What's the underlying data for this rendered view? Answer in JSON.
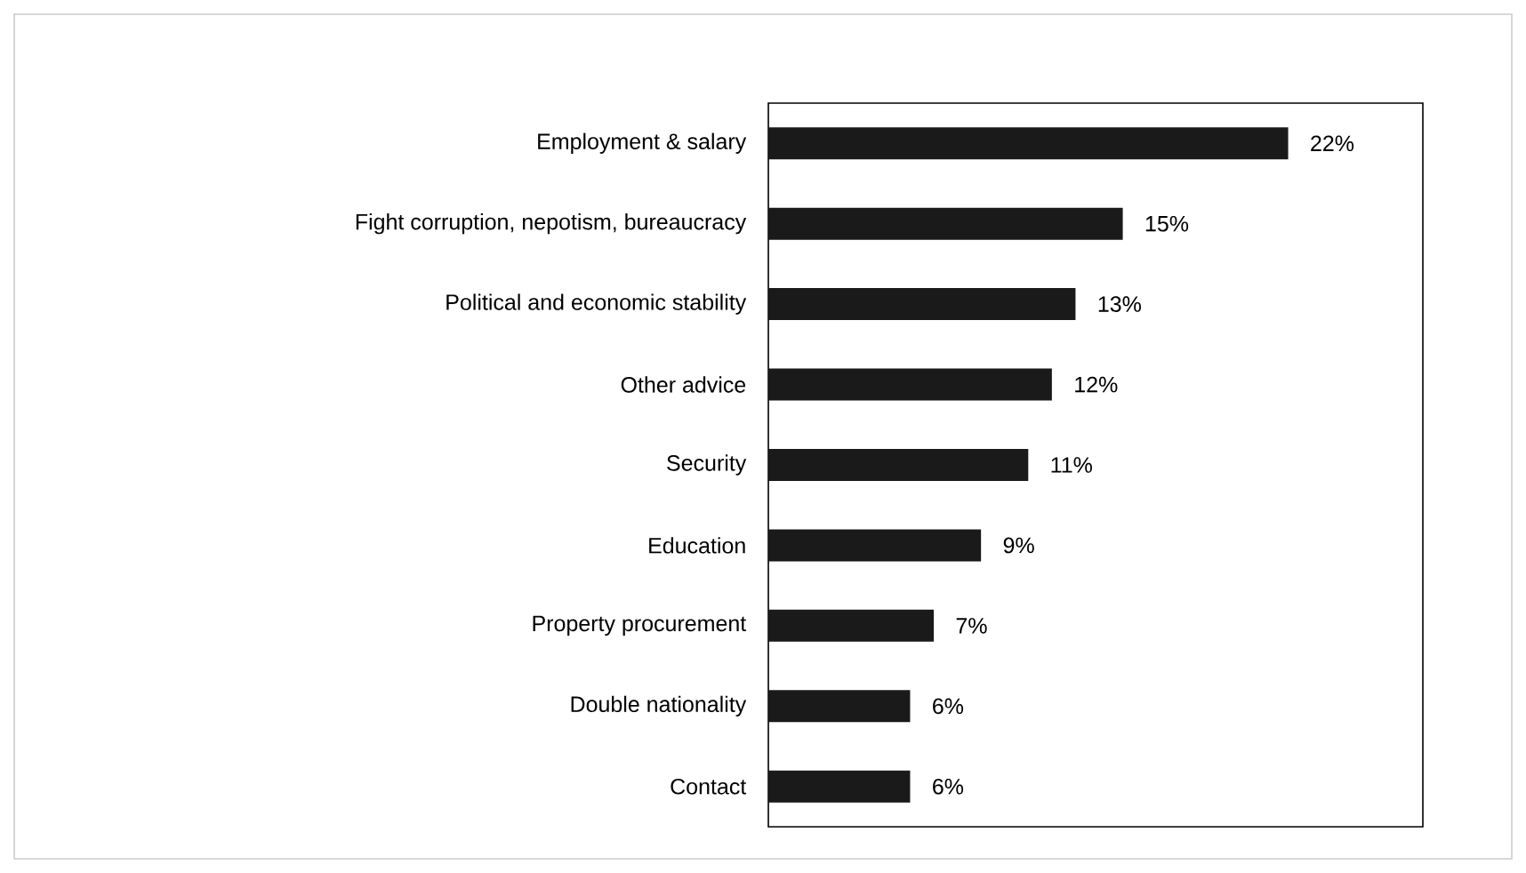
{
  "chart_data": {
    "type": "bar",
    "orientation": "horizontal",
    "categories": [
      "Employment & salary",
      "Fight corruption, nepotism, bureaucracy",
      "Political and economic stability",
      "Other advice",
      "Security",
      "Education",
      "Property procurement",
      "Double nationality",
      "Contact"
    ],
    "values": [
      22,
      15,
      13,
      12,
      11,
      9,
      7,
      6,
      6
    ],
    "value_labels": [
      "22%",
      "15%",
      "13%",
      "12%",
      "11%",
      "9%",
      "7%",
      "6%",
      "6%"
    ],
    "color": "#1a1a1a",
    "xlim": [
      0,
      27.7
    ]
  }
}
